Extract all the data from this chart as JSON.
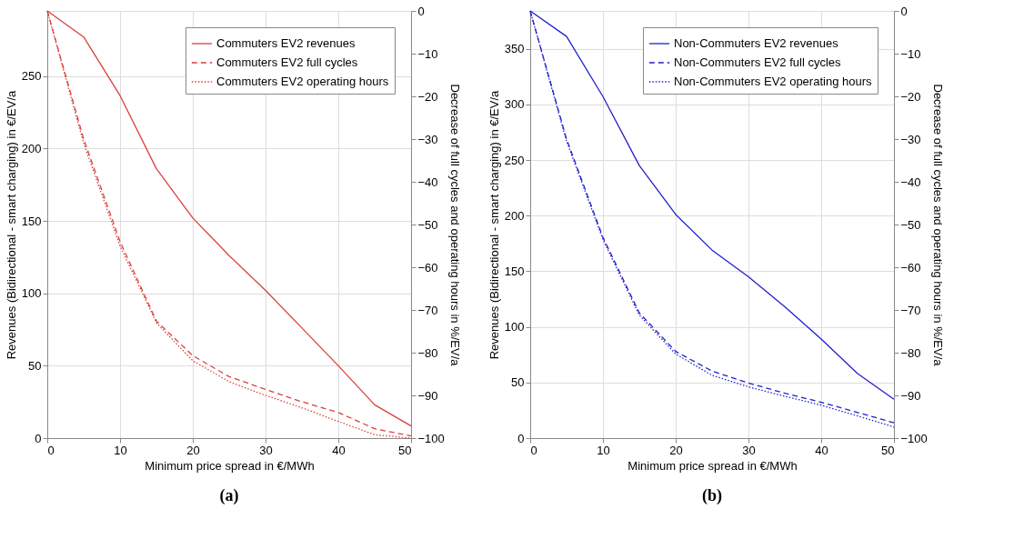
{
  "chart_data": [
    {
      "type": "line",
      "title": "(a)",
      "xlabel": "Minimum price spread in €/MWh",
      "ylabel": "Revenues (Bidirectional - smart charging) in €/EV/a",
      "y2label": "Decrease of full cycles and operating hours in %/EV/a",
      "x": [
        0,
        5,
        10,
        15,
        20,
        25,
        30,
        35,
        40,
        45,
        50
      ],
      "xlim": [
        0,
        50
      ],
      "xticks": [
        0,
        10,
        20,
        30,
        40,
        50
      ],
      "ylim": [
        0,
        295
      ],
      "yticks": [
        0,
        50,
        100,
        150,
        200,
        250
      ],
      "y2lim": [
        -100,
        0
      ],
      "y2ticks": [
        -100,
        -90,
        -80,
        -70,
        -60,
        -50,
        -40,
        -30,
        -20,
        -10,
        0
      ],
      "grid": true,
      "legend": "top right",
      "series": [
        {
          "name": "Commuters EV2 revenues",
          "color": "#d9403b",
          "line_style": "solid",
          "values": [
            295,
            277,
            236.5,
            186,
            152,
            126,
            102,
            76,
            50,
            23,
            8.4
          ]
        },
        {
          "name": "Commuters EV2 full cycles",
          "color": "#d9403b",
          "line_style": "dashed",
          "axis": "y2",
          "values": [
            0,
            -30,
            -54,
            -72.6,
            -80.7,
            -85.6,
            -88.6,
            -91.5,
            -94,
            -97.8,
            -99.5
          ]
        },
        {
          "name": "Commuters EV2 operating hours",
          "color": "#d9403b",
          "line_style": "dotted",
          "axis": "y2",
          "values": [
            0,
            -31,
            -55,
            -73,
            -81.9,
            -86.8,
            -90,
            -92.9,
            -96.1,
            -99.2,
            -100
          ]
        }
      ]
    },
    {
      "type": "line",
      "title": "(b)",
      "xlabel": "Minimum price spread in €/MWh",
      "ylabel": "Revenues (Bidirectional - smart charging) in €/EV/a",
      "y2label": "Decrease of full cycles and operating hours in %/EV/a",
      "x": [
        0,
        5,
        10,
        15,
        20,
        25,
        30,
        35,
        40,
        45,
        50
      ],
      "xlim": [
        0,
        50
      ],
      "xticks": [
        0,
        10,
        20,
        30,
        40,
        50
      ],
      "ylim": [
        0,
        384
      ],
      "yticks": [
        0,
        50,
        100,
        150,
        200,
        250,
        300,
        350
      ],
      "y2lim": [
        -100,
        0
      ],
      "y2ticks": [
        -100,
        -90,
        -80,
        -70,
        -60,
        -50,
        -40,
        -30,
        -20,
        -10,
        0
      ],
      "grid": true,
      "legend": "top right",
      "series": [
        {
          "name": "Non-Commuters EV2 revenues",
          "color": "#2020cc",
          "line_style": "solid",
          "values": [
            384,
            361,
            307,
            245,
            201,
            169,
            145,
            118,
            89,
            58,
            35
          ]
        },
        {
          "name": "Non-Commuters EV2 full cycles",
          "color": "#2020cc",
          "line_style": "dashed",
          "axis": "y2",
          "values": [
            0,
            -30,
            -53,
            -70.7,
            -79.7,
            -84.3,
            -87.1,
            -89.5,
            -91.6,
            -94,
            -96.4
          ]
        },
        {
          "name": "Non-Commuters EV2 operating hours",
          "color": "#2020cc",
          "line_style": "dotted",
          "axis": "y2",
          "values": [
            0,
            -30.5,
            -53.5,
            -71.2,
            -80.3,
            -85.3,
            -88,
            -90.2,
            -92.3,
            -94.8,
            -97.4
          ]
        }
      ]
    }
  ]
}
